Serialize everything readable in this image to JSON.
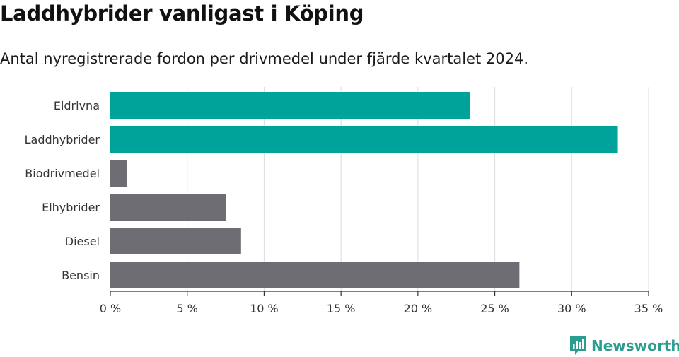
{
  "title": "Laddhybrider vanligast i Köping",
  "subtitle": "Antal nyregistrerade fordon per drivmedel under fjärde kvartalet 2024.",
  "brand": {
    "name": "Newsworthy",
    "color": "#2a9d8f",
    "icon": "newsworthy-logo-icon"
  },
  "colors": {
    "highlight": "#00a39a",
    "default": "#6e6d73",
    "grid": "#dddddd",
    "axis": "#333333"
  },
  "chart_data": {
    "type": "bar",
    "orientation": "horizontal",
    "categories": [
      "Eldrivna",
      "Laddhybrider",
      "Biodrivmedel",
      "Elhybrider",
      "Diesel",
      "Bensin"
    ],
    "values": [
      23.4,
      33.0,
      1.1,
      7.5,
      8.5,
      26.6
    ],
    "highlighted": [
      true,
      true,
      false,
      false,
      false,
      false
    ],
    "xlim": [
      0,
      35
    ],
    "ticks": [
      0,
      5,
      10,
      15,
      20,
      25,
      30,
      35
    ],
    "tick_labels": [
      "0 %",
      "5 %",
      "10 %",
      "15 %",
      "20 %",
      "25 %",
      "30 %",
      "35 %"
    ],
    "grid": true
  }
}
